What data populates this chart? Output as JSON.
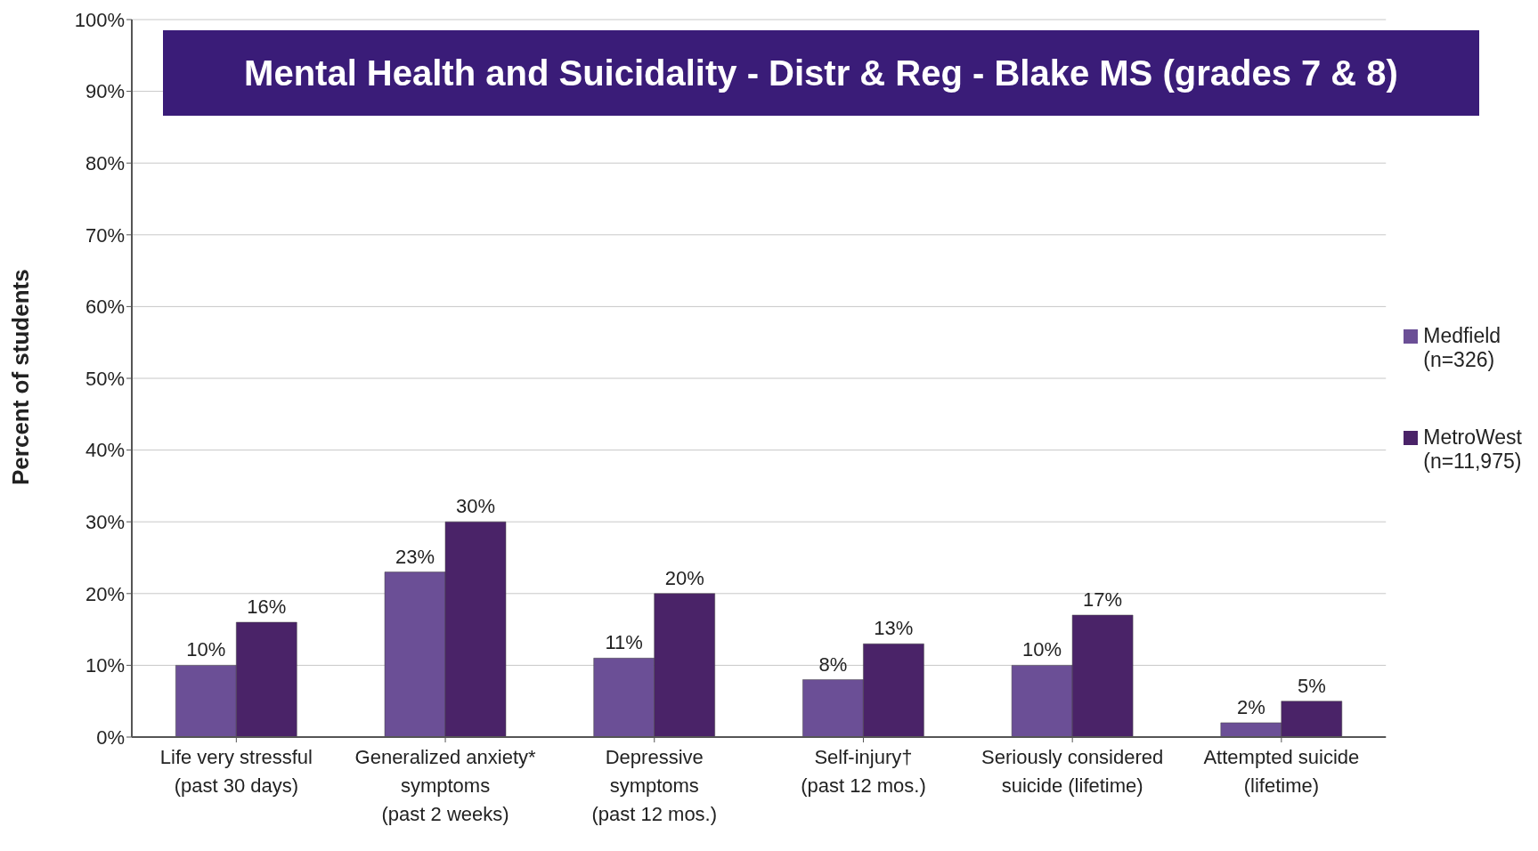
{
  "chart_data": {
    "type": "bar",
    "title": "Mental Health and Suicidality - Distr & Reg - Blake MS (grades 7 & 8)",
    "ylabel": "Percent of students",
    "categories": [
      "Life very stressful\n(past 30 days)",
      "Generalized anxiety*\nsymptoms\n(past 2 weeks)",
      "Depressive\nsymptoms\n(past 12 mos.)",
      "Self-injury†\n(past 12 mos.)",
      "Seriously considered\nsuicide (lifetime)",
      "Attempted suicide\n(lifetime)"
    ],
    "series": [
      {
        "name": "Medfield\n(n=326)",
        "color": "#6b4f96",
        "values": [
          10,
          23,
          11,
          8,
          10,
          2
        ],
        "value_labels": [
          "10%",
          "23%",
          "11%",
          "8%",
          "10%",
          "2%"
        ]
      },
      {
        "name": "MetroWest\n(n=11,975)",
        "color": "#4a2368",
        "values": [
          16,
          30,
          20,
          13,
          17,
          5
        ],
        "value_labels": [
          "16%",
          "30%",
          "20%",
          "13%",
          "17%",
          "5%"
        ]
      }
    ],
    "ylim": [
      0,
      100
    ],
    "yticks": [
      {
        "value": 0,
        "label": "0%"
      },
      {
        "value": 10,
        "label": "10%"
      },
      {
        "value": 20,
        "label": "20%"
      },
      {
        "value": 30,
        "label": "30%"
      },
      {
        "value": 40,
        "label": "40%"
      },
      {
        "value": 50,
        "label": "50%"
      },
      {
        "value": 60,
        "label": "60%"
      },
      {
        "value": 70,
        "label": "70%"
      },
      {
        "value": 80,
        "label": "80%"
      },
      {
        "value": 90,
        "label": "90%"
      },
      {
        "value": 100,
        "label": "100%"
      }
    ],
    "grid": "y",
    "legend": "right"
  }
}
